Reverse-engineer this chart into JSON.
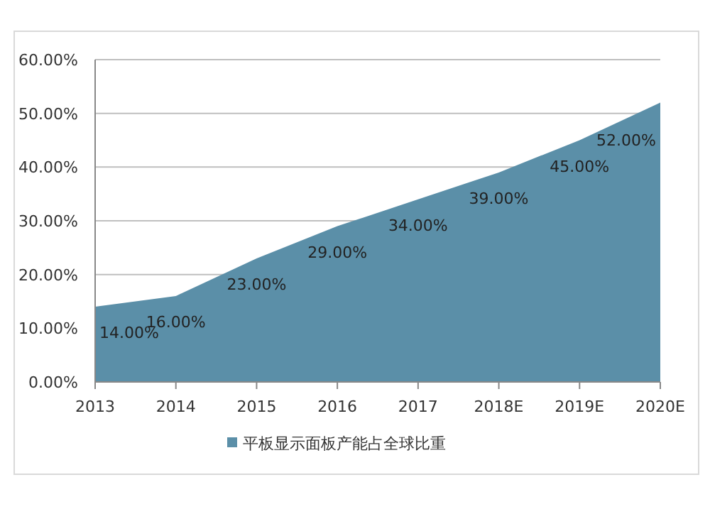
{
  "chart_data": {
    "type": "area",
    "categories": [
      "2013",
      "2014",
      "2015",
      "2016",
      "2017",
      "2018E",
      "2019E",
      "2020E"
    ],
    "series": [
      {
        "name": "平板显示面板产能占全球比重",
        "color": "#5b8fa8",
        "values": [
          14,
          16,
          23,
          29,
          34,
          39,
          45,
          52
        ]
      }
    ],
    "value_labels": [
      "14.00%",
      "16.00%",
      "23.00%",
      "29.00%",
      "34.00%",
      "39.00%",
      "45.00%",
      "52.00%"
    ],
    "ylim": [
      0,
      60
    ],
    "yticks": [
      {
        "value": 0,
        "label": "0.00%"
      },
      {
        "value": 10,
        "label": "10.00%"
      },
      {
        "value": 20,
        "label": "20.00%"
      },
      {
        "value": 30,
        "label": "30.00%"
      },
      {
        "value": 40,
        "label": "40.00%"
      },
      {
        "value": 50,
        "label": "50.00%"
      },
      {
        "value": 60,
        "label": "60.00%"
      }
    ],
    "grid": "y",
    "legend": "bottom"
  }
}
